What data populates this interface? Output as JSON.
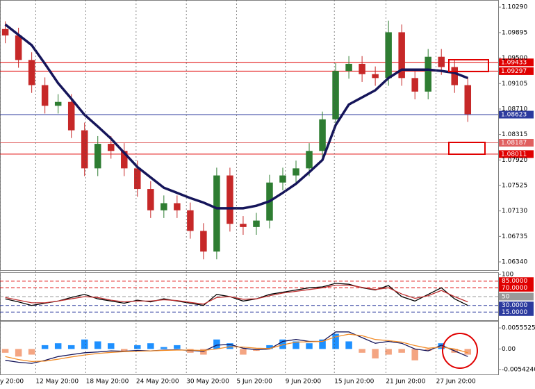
{
  "chart_data": [
    {
      "type": "candlestick",
      "xlim": [
        -0.4,
        37.3
      ],
      "ylim": [
        1.062,
        1.104
      ],
      "yticks": [
        {
          "value": 1.1029,
          "label": "1.10290"
        },
        1.09895,
        {
          "value": 1.095,
          "label": "1.09500"
        },
        1.09105,
        {
          "value": 1.0871,
          "label": "1.08710"
        },
        1.08315,
        {
          "value": 1.0792,
          "label": "1.07920"
        },
        1.07525,
        {
          "value": 1.0713,
          "label": "1.07130"
        },
        1.06735,
        {
          "value": 1.0634,
          "label": "1.06340"
        }
      ],
      "open": [
        1.0995,
        1.0985,
        1.0947,
        1.0908,
        1.0876,
        1.0882,
        1.0838,
        1.0779,
        1.0817,
        1.0806,
        1.0779,
        1.0747,
        1.0714,
        1.0725,
        1.0714,
        1.0682,
        1.065,
        1.0768,
        1.0693,
        1.0688,
        1.0698,
        1.0757,
        1.0768,
        1.0779,
        1.0806,
        1.0855,
        1.093,
        1.0941,
        1.0925,
        1.0919,
        1.099,
        1.0919,
        1.0898,
        1.0952,
        1.0936,
        1.0908
      ],
      "high": [
        1.1007,
        1.0997,
        1.0959,
        1.092,
        1.0894,
        1.0894,
        1.085,
        1.0829,
        1.0829,
        1.0818,
        1.0791,
        1.0759,
        1.0737,
        1.0737,
        1.0726,
        1.0694,
        1.078,
        1.078,
        1.0705,
        1.071,
        1.0769,
        1.078,
        1.0791,
        1.0818,
        1.0867,
        1.0942,
        1.0953,
        1.0953,
        1.0937,
        1.1008,
        1.1002,
        1.0931,
        1.0964,
        1.0964,
        1.0948,
        1.092
      ],
      "low": [
        1.0973,
        1.0935,
        1.0896,
        1.0864,
        1.0864,
        1.0826,
        1.0767,
        1.0767,
        1.0794,
        1.0767,
        1.0735,
        1.0702,
        1.0702,
        1.0702,
        1.067,
        1.0638,
        1.0638,
        1.0681,
        1.0676,
        1.0676,
        1.0686,
        1.0745,
        1.0756,
        1.0767,
        1.0794,
        1.0843,
        1.0918,
        1.0913,
        1.0907,
        1.0907,
        1.0907,
        1.0886,
        1.0886,
        1.0924,
        1.0896,
        1.0851
      ],
      "close": [
        1.0985,
        1.0947,
        1.0908,
        1.0876,
        1.0882,
        1.0838,
        1.0779,
        1.0817,
        1.0806,
        1.0779,
        1.0747,
        1.0714,
        1.0725,
        1.0714,
        1.0682,
        1.065,
        1.0768,
        1.0693,
        1.0688,
        1.0698,
        1.0757,
        1.0768,
        1.0779,
        1.0806,
        1.0855,
        1.093,
        1.0941,
        1.0925,
        1.0919,
        1.099,
        1.0919,
        1.0898,
        1.0952,
        1.0936,
        1.0908,
        1.0863
      ],
      "up_color": "#2e7d32",
      "down_color": "#c62828",
      "series": [
        {
          "color": "#15155a",
          "values": [
            1.1002,
            1.0986,
            1.097,
            1.0941,
            1.0911,
            1.0887,
            1.0862,
            1.0844,
            1.0825,
            1.0803,
            1.0781,
            1.0765,
            1.0749,
            1.0741,
            1.0733,
            1.0726,
            1.0717,
            1.0717,
            1.0717,
            1.0721,
            1.0728,
            1.0741,
            1.0755,
            1.0773,
            1.0792,
            1.0846,
            1.0878,
            1.0889,
            1.09,
            1.0919,
            1.0932,
            1.0932,
            1.0932,
            1.093,
            1.0927,
            1.0919
          ]
        }
      ],
      "levels": [
        {
          "value": 1.09433,
          "color": "#e00000"
        },
        {
          "value": 1.09297,
          "color": "#e00000"
        },
        {
          "value": 1.08623,
          "color": "#2b3a9e"
        },
        {
          "value": 1.08187,
          "color": "#e06060"
        },
        {
          "value": 1.08011,
          "color": "#e00000"
        }
      ]
    },
    {
      "type": "line",
      "xlim": [
        -0.4,
        37.3
      ],
      "ylim": [
        -5,
        105
      ],
      "yticks": [
        100,
        {
          "value": 85,
          "label": "85.0000"
        },
        {
          "value": 70,
          "label": "70.0000"
        },
        50,
        {
          "value": 30,
          "label": "30.0000"
        },
        {
          "value": 15,
          "label": "15.0000"
        }
      ],
      "levels": [
        {
          "value": 85,
          "color": "#e00000"
        },
        {
          "value": 70,
          "color": "#e00000"
        },
        {
          "value": 50,
          "color": "#999999"
        },
        {
          "value": 30,
          "color": "#2b3a9e"
        },
        {
          "value": 15,
          "color": "#2b3a9e"
        }
      ],
      "series": [
        {
          "color": "#000000",
          "values": [
            45,
            38,
            30,
            35,
            40,
            48,
            55,
            45,
            40,
            35,
            42,
            38,
            45,
            40,
            35,
            30,
            55,
            50,
            40,
            45,
            55,
            60,
            65,
            70,
            72,
            80,
            78,
            70,
            65,
            75,
            50,
            40,
            55,
            70,
            45,
            30
          ]
        },
        {
          "color": "#c03030",
          "values": [
            48,
            42,
            36,
            36,
            40,
            45,
            50,
            48,
            42,
            38,
            40,
            40,
            43,
            41,
            37,
            33,
            48,
            50,
            44,
            45,
            52,
            58,
            62,
            66,
            70,
            76,
            76,
            71,
            66,
            70,
            56,
            46,
            52,
            64,
            50,
            38
          ]
        }
      ]
    },
    {
      "type": "bar",
      "xlim": [
        -0.4,
        37.3
      ],
      "ylim": [
        -0.0069,
        0.0074
      ],
      "yticks": [
        0.0055525,
        {
          "value": 0,
          "label": "0.00"
        },
        {
          "value": -0.005424,
          "label": "-0.0054240"
        }
      ],
      "values": [
        -0.001,
        -0.002,
        -0.0015,
        0.001,
        0.0015,
        0.001,
        0.0025,
        0.002,
        0.0015,
        -0.0005,
        0.001,
        0.0015,
        0.0005,
        0.001,
        -0.001,
        -0.0015,
        0.0025,
        0.0015,
        -0.0015,
        -0.0005,
        0.001,
        0.0025,
        0.002,
        0.0015,
        0.0025,
        0.004,
        0.002,
        -0.001,
        -0.0025,
        -0.0015,
        -0.001,
        -0.003,
        -0.0005,
        0.0015,
        -0.001,
        -0.0015
      ],
      "up_color": "#1e90ff",
      "down_color": "#f4a582",
      "series": [
        {
          "color": "#15155a",
          "values": [
            -0.003,
            -0.0035,
            -0.0038,
            -0.003,
            -0.002,
            -0.0015,
            -0.001,
            -0.0008,
            -0.0005,
            -0.0006,
            -0.0004,
            -0.0005,
            -0.0003,
            -0.0002,
            -0.0004,
            -0.0006,
            0.001,
            0.0012,
            0.0002,
            -0.0002,
            0.0,
            0.002,
            0.0025,
            0.002,
            0.002,
            0.0045,
            0.0045,
            0.003,
            0.0015,
            0.002,
            0.0015,
            0.0,
            -0.0005,
            0.001,
            -0.0005,
            -0.002
          ]
        },
        {
          "color": "#f28c28",
          "values": [
            -0.002,
            -0.0028,
            -0.0033,
            -0.0032,
            -0.0027,
            -0.0021,
            -0.0016,
            -0.0012,
            -0.0009,
            -0.0007,
            -0.0006,
            -0.0005,
            -0.0004,
            -0.0003,
            -0.0003,
            -0.0004,
            0.0,
            0.0006,
            0.0005,
            0.0002,
            0.0001,
            0.0011,
            0.0018,
            0.0019,
            0.002,
            0.0032,
            0.0039,
            0.0035,
            0.0025,
            0.0022,
            0.0018,
            0.0009,
            0.0002,
            0.0005,
            0.0,
            -0.001
          ]
        }
      ],
      "xticks": [
        {
          "value": -0.4,
          "label": "y 20:00"
        },
        {
          "value": 2.3,
          "label": "12 May 20:00"
        },
        {
          "value": 6.1,
          "label": "18 May 20:00"
        },
        {
          "value": 9.9,
          "label": "24 May 20:00"
        },
        {
          "value": 13.7,
          "label": "30 May 20:00"
        },
        {
          "value": 17.5,
          "label": "5 Jun 20:00"
        },
        {
          "value": 21.2,
          "label": "9 Jun 20:00"
        },
        {
          "value": 24.9,
          "label": "15 Jun 20:00"
        },
        {
          "value": 28.8,
          "label": "21 Jun 20:00"
        },
        {
          "value": 32.6,
          "label": "27 Jun 20:00"
        }
      ]
    }
  ]
}
